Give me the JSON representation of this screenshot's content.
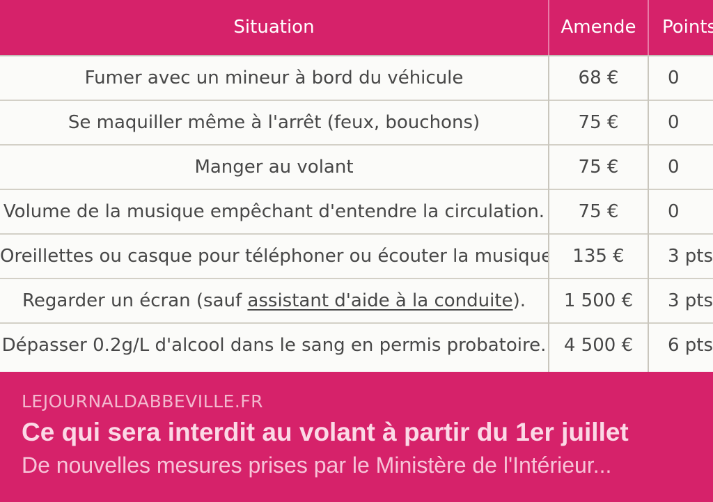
{
  "table": {
    "headers": {
      "situation": "Situation",
      "amende": "Amende",
      "points": "Points"
    },
    "rows": [
      {
        "situation": "Fumer avec un mineur à bord du véhicule",
        "amende": "68 €",
        "points": "0"
      },
      {
        "situation": "Se maquiller même à l'arrêt (feux, bouchons)",
        "amende": "75 €",
        "points": "0"
      },
      {
        "situation": "Manger au volant",
        "amende": "75 €",
        "points": "0"
      },
      {
        "situation": "Volume de la musique empêchant d'entendre la circulation.",
        "amende": "75 €",
        "points": "0"
      },
      {
        "situation": "Oreillettes ou casque pour téléphoner ou écouter la musique.",
        "amende": "135 €",
        "points": "3 pts"
      },
      {
        "situation_before": "Regarder un écran (sauf ",
        "situation_link": "assistant d'aide à la conduite",
        "situation_after": ").",
        "amende": "1 500 €",
        "points": "3 pts"
      },
      {
        "situation": "Dépasser 0.2g/L d'alcool dans le sang en permis probatoire.",
        "amende": "4 500 €",
        "points": "6 pts"
      }
    ]
  },
  "footer": {
    "source": "LEJOURNALDABBEVILLE.FR",
    "title": "Ce qui sera interdit au volant à partir du 1er juillet",
    "description": "De nouvelles mesures prises par le Ministère de l'Intérieur..."
  },
  "colors": {
    "brand_pink": "#d6226a",
    "table_background": "#fbfbf9",
    "table_text": "#474747"
  }
}
